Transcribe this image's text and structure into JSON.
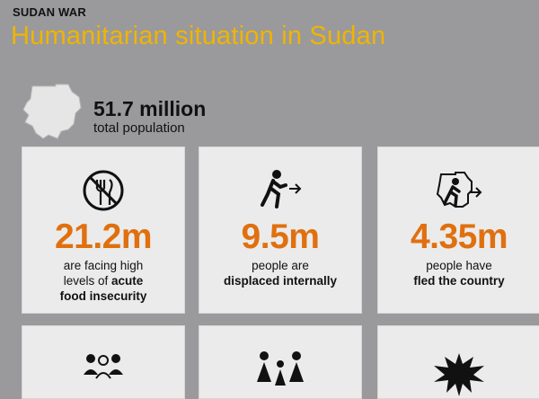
{
  "header": {
    "kicker": "SUDAN WAR",
    "title": "Humanitarian situation in Sudan"
  },
  "population": {
    "value": "51.7 million",
    "label": "total population",
    "icon": "sudan-map-icon"
  },
  "stats": [
    {
      "value": "21.2m",
      "desc_line1": "are facing high",
      "desc_line2_plain": "levels of",
      "desc_line2_bold": "acute",
      "desc_line3_bold": "food insecurity",
      "icon": "no-food-icon"
    },
    {
      "value": "9.5m",
      "desc_line1": "people are",
      "desc_line2_bold": "displaced internally",
      "icon": "walking-person-arrow-icon"
    },
    {
      "value": "4.35m",
      "desc_line1": "people have",
      "desc_line2_bold": "fled the country",
      "icon": "person-leaving-map-icon"
    }
  ],
  "bottom_icons": [
    "people-group-icon",
    "family-icon",
    "explosion-icon"
  ],
  "colors": {
    "background": "#9a9a9c",
    "title": "#f0b400",
    "stat": "#e0700f",
    "card": "#ebebeb"
  }
}
